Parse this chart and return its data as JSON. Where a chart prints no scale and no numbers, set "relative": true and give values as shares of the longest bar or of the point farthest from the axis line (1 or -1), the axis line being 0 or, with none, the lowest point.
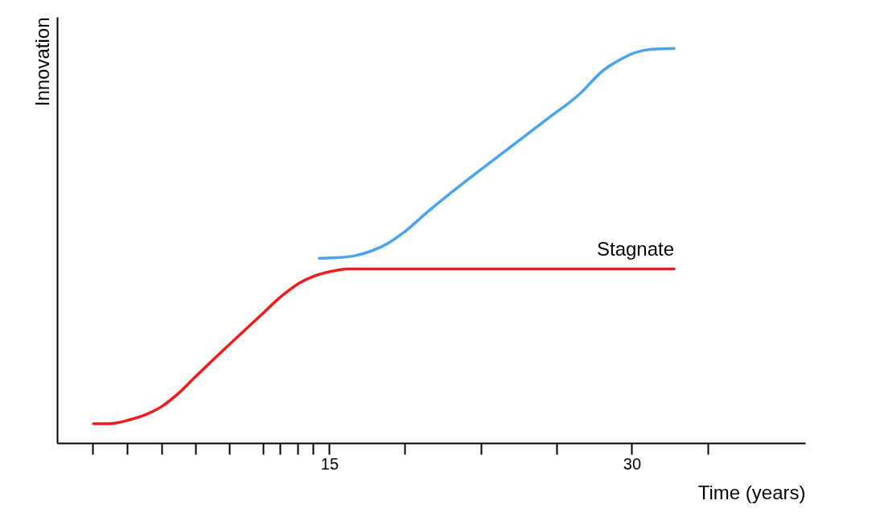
{
  "chart_data": {
    "type": "line",
    "relative": true,
    "xlabel": "Time (years)",
    "ylabel": "Innovation",
    "xlim": [
      1.5,
      38.6
    ],
    "xticks": [
      {
        "value": 3.26,
        "label": null
      },
      {
        "value": 4.97,
        "label": null
      },
      {
        "value": 6.68,
        "label": null
      },
      {
        "value": 8.35,
        "label": null
      },
      {
        "value": 10.03,
        "label": null
      },
      {
        "value": 11.7,
        "label": null
      },
      {
        "value": 12.57,
        "label": null
      },
      {
        "value": 13.41,
        "label": null
      },
      {
        "value": 14.2,
        "label": null
      },
      15,
      {
        "value": 18.74,
        "label": null
      },
      {
        "value": 22.52,
        "label": null
      },
      {
        "value": 26.26,
        "label": null
      },
      30,
      {
        "value": 33.78,
        "label": null
      }
    ],
    "grid": false,
    "marker": "none",
    "line_style": "solid",
    "series": [
      {
        "name": "Stagnate",
        "color": "#ee1c1c",
        "x": [
          3.3,
          4.1,
          5.1,
          5.9,
          6.7,
          7.5,
          8.3,
          9.9,
          11.5,
          12.7,
          13.5,
          14.3,
          15.1,
          15.9,
          16.7,
          32.1
        ],
        "values": [
          0.049,
          0.049,
          0.059,
          0.072,
          0.093,
          0.125,
          0.165,
          0.243,
          0.319,
          0.375,
          0.405,
          0.424,
          0.435,
          0.441,
          0.441,
          0.441
        ]
      },
      {
        "color": "#4aa3ec",
        "x": [
          14.5,
          15.5,
          16.3,
          17.1,
          17.9,
          18.7,
          19.9,
          21.8,
          23.8,
          25.8,
          27.4,
          28.6,
          29.4,
          30.2,
          31.0,
          32.1
        ],
        "values": [
          0.468,
          0.47,
          0.475,
          0.487,
          0.506,
          0.534,
          0.587,
          0.665,
          0.743,
          0.821,
          0.884,
          0.945,
          0.971,
          0.99,
          0.998,
          1
        ]
      }
    ]
  }
}
